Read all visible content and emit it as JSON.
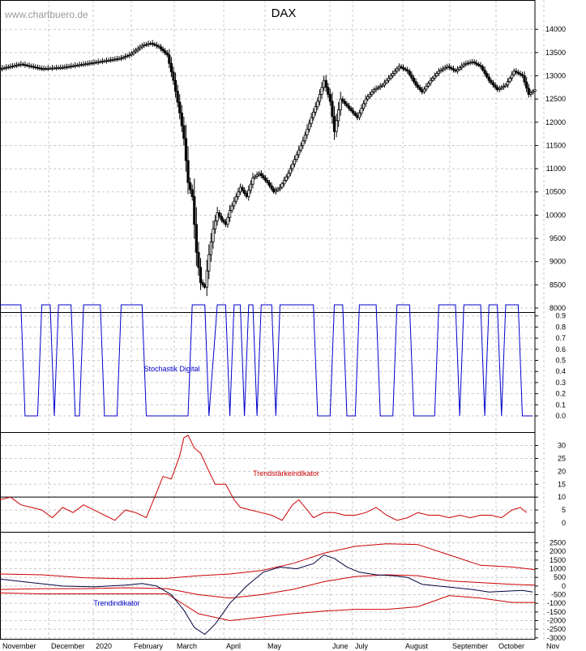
{
  "watermark": "www.chartbuero.de",
  "title": "DAX",
  "months": [
    "November",
    "December",
    "2020",
    "February",
    "March",
    "April",
    "May",
    "June",
    "July",
    "August",
    "September",
    "October",
    "Nov"
  ],
  "chart_data": [
    {
      "type": "candlestick",
      "title": "DAX",
      "ylim": [
        8000,
        14300
      ],
      "yticks": [
        8000,
        8500,
        9000,
        9500,
        10000,
        10500,
        11000,
        11500,
        12000,
        12500,
        13000,
        13500,
        14000
      ],
      "x_unit": "trading day index (0 = start of November 2019)",
      "close_series": [
        [
          0,
          13150
        ],
        [
          10,
          13250
        ],
        [
          20,
          13150
        ],
        [
          30,
          13180
        ],
        [
          40,
          13250
        ],
        [
          50,
          13320
        ],
        [
          58,
          13380
        ],
        [
          62,
          13450
        ],
        [
          68,
          13650
        ],
        [
          72,
          13700
        ],
        [
          76,
          13620
        ],
        [
          80,
          13450
        ],
        [
          83,
          12900
        ],
        [
          86,
          12200
        ],
        [
          88,
          11650
        ],
        [
          90,
          10700
        ],
        [
          92,
          10400
        ],
        [
          94,
          9200
        ],
        [
          96,
          8550
        ],
        [
          98,
          8450
        ],
        [
          100,
          9150
        ],
        [
          102,
          9700
        ],
        [
          104,
          10050
        ],
        [
          106,
          9900
        ],
        [
          108,
          9800
        ],
        [
          110,
          10100
        ],
        [
          112,
          10300
        ],
        [
          115,
          10600
        ],
        [
          118,
          10400
        ],
        [
          121,
          10800
        ],
        [
          124,
          10900
        ],
        [
          128,
          10700
        ],
        [
          131,
          10500
        ],
        [
          134,
          10600
        ],
        [
          138,
          10900
        ],
        [
          141,
          11200
        ],
        [
          145,
          11600
        ],
        [
          149,
          12100
        ],
        [
          152,
          12450
        ],
        [
          155,
          12900
        ],
        [
          158,
          12450
        ],
        [
          160,
          11800
        ],
        [
          163,
          12500
        ],
        [
          167,
          12300
        ],
        [
          171,
          12100
        ],
        [
          175,
          12500
        ],
        [
          179,
          12700
        ],
        [
          183,
          12800
        ],
        [
          187,
          13000
        ],
        [
          191,
          13200
        ],
        [
          195,
          13100
        ],
        [
          199,
          12800
        ],
        [
          202,
          12650
        ],
        [
          206,
          12900
        ],
        [
          210,
          13100
        ],
        [
          214,
          13200
        ],
        [
          218,
          13100
        ],
        [
          222,
          13250
        ],
        [
          226,
          13300
        ],
        [
          230,
          13200
        ],
        [
          234,
          12900
        ],
        [
          238,
          12700
        ],
        [
          242,
          12800
        ],
        [
          246,
          13100
        ],
        [
          250,
          13000
        ],
        [
          253,
          12600
        ],
        [
          256,
          12700
        ]
      ]
    },
    {
      "type": "line",
      "title": "Stochastik Digital",
      "ylim": [
        0,
        1
      ],
      "yticks": [
        0.0,
        0.1,
        0.2,
        0.3,
        0.4,
        0.5,
        0.6,
        0.7,
        0.8,
        0.9
      ],
      "series": [
        {
          "name": "Stochastik Digital",
          "color": "#0000cc",
          "points": [
            [
              0,
              1
            ],
            [
              10,
              1
            ],
            [
              12,
              0
            ],
            [
              18,
              0
            ],
            [
              20,
              1
            ],
            [
              24,
              1
            ],
            [
              26,
              0
            ],
            [
              28,
              1
            ],
            [
              34,
              1
            ],
            [
              36,
              0
            ],
            [
              38,
              0
            ],
            [
              40,
              1
            ],
            [
              48,
              1
            ],
            [
              50,
              0
            ],
            [
              56,
              0
            ],
            [
              58,
              1
            ],
            [
              68,
              1
            ],
            [
              70,
              0
            ],
            [
              90,
              0
            ],
            [
              92,
              1
            ],
            [
              98,
              1
            ],
            [
              100,
              0
            ],
            [
              104,
              1
            ],
            [
              108,
              1
            ],
            [
              110,
              0
            ],
            [
              112,
              1
            ],
            [
              115,
              1
            ],
            [
              117,
              0
            ],
            [
              119,
              1
            ],
            [
              121,
              1
            ],
            [
              123,
              0
            ],
            [
              125,
              1
            ],
            [
              130,
              1
            ],
            [
              132,
              0
            ],
            [
              134,
              1
            ],
            [
              150,
              1
            ],
            [
              152,
              0
            ],
            [
              158,
              0
            ],
            [
              160,
              1
            ],
            [
              164,
              1
            ],
            [
              166,
              0
            ],
            [
              170,
              0
            ],
            [
              172,
              1
            ],
            [
              180,
              1
            ],
            [
              182,
              0
            ],
            [
              188,
              0
            ],
            [
              190,
              1
            ],
            [
              196,
              1
            ],
            [
              198,
              0
            ],
            [
              208,
              0
            ],
            [
              210,
              1
            ],
            [
              218,
              1
            ],
            [
              220,
              0
            ],
            [
              222,
              1
            ],
            [
              230,
              1
            ],
            [
              232,
              0
            ],
            [
              234,
              1
            ],
            [
              238,
              1
            ],
            [
              240,
              0
            ],
            [
              242,
              1
            ],
            [
              248,
              1
            ],
            [
              250,
              0
            ],
            [
              255,
              0
            ]
          ]
        }
      ]
    },
    {
      "type": "line",
      "title": "Trendstärkeindikator",
      "ylim": [
        0,
        33
      ],
      "yticks": [
        0,
        5,
        10,
        15,
        20,
        25,
        30
      ],
      "reference_line": 10,
      "series": [
        {
          "name": "Trendstärkeindikator",
          "color": "#cc0000",
          "points": [
            [
              0,
              9
            ],
            [
              5,
              10
            ],
            [
              10,
              7
            ],
            [
              15,
              6
            ],
            [
              20,
              5
            ],
            [
              25,
              2
            ],
            [
              30,
              6
            ],
            [
              35,
              4
            ],
            [
              40,
              7
            ],
            [
              45,
              5
            ],
            [
              50,
              3
            ],
            [
              55,
              1
            ],
            [
              60,
              5
            ],
            [
              65,
              4
            ],
            [
              70,
              2
            ],
            [
              75,
              12
            ],
            [
              78,
              18
            ],
            [
              82,
              17
            ],
            [
              86,
              26
            ],
            [
              88,
              33
            ],
            [
              90,
              34
            ],
            [
              93,
              29
            ],
            [
              96,
              27
            ],
            [
              100,
              20
            ],
            [
              103,
              15
            ],
            [
              108,
              15
            ],
            [
              112,
              9
            ],
            [
              115,
              6
            ],
            [
              120,
              5
            ],
            [
              125,
              4
            ],
            [
              130,
              3
            ],
            [
              135,
              1
            ],
            [
              140,
              7
            ],
            [
              143,
              9
            ],
            [
              147,
              5
            ],
            [
              150,
              2
            ],
            [
              155,
              4
            ],
            [
              160,
              4
            ],
            [
              165,
              3
            ],
            [
              170,
              3
            ],
            [
              175,
              4
            ],
            [
              180,
              6
            ],
            [
              185,
              3
            ],
            [
              190,
              1
            ],
            [
              195,
              2
            ],
            [
              200,
              4
            ],
            [
              205,
              3
            ],
            [
              210,
              3
            ],
            [
              215,
              2
            ],
            [
              220,
              3
            ],
            [
              225,
              2
            ],
            [
              230,
              3
            ],
            [
              235,
              3
            ],
            [
              240,
              2
            ],
            [
              245,
              5
            ],
            [
              249,
              6
            ],
            [
              252,
              4
            ]
          ]
        }
      ]
    },
    {
      "type": "line",
      "title": "Trendindikator",
      "ylim": [
        -3150,
        2950
      ],
      "yticks": [
        -3000,
        -2500,
        -2000,
        -1500,
        -1000,
        -500,
        0,
        500,
        1000,
        1500,
        2000,
        2500
      ],
      "series": [
        {
          "name": "upper band",
          "color": "#cc0000",
          "points": [
            [
              0,
              700
            ],
            [
              20,
              650
            ],
            [
              40,
              480
            ],
            [
              60,
              420
            ],
            [
              80,
              450
            ],
            [
              95,
              600
            ],
            [
              110,
              700
            ],
            [
              125,
              900
            ],
            [
              140,
              1300
            ],
            [
              155,
              1900
            ],
            [
              170,
              2300
            ],
            [
              185,
              2450
            ],
            [
              200,
              2400
            ],
            [
              215,
              1800
            ],
            [
              230,
              1200
            ],
            [
              245,
              1100
            ],
            [
              256,
              950
            ]
          ]
        },
        {
          "name": "middle line",
          "color": "#cc0000",
          "points": [
            [
              0,
              -200
            ],
            [
              20,
              -150
            ],
            [
              40,
              -150
            ],
            [
              60,
              -100
            ],
            [
              80,
              -150
            ],
            [
              95,
              -500
            ],
            [
              110,
              -700
            ],
            [
              125,
              -500
            ],
            [
              140,
              -200
            ],
            [
              155,
              250
            ],
            [
              170,
              550
            ],
            [
              185,
              650
            ],
            [
              200,
              600
            ],
            [
              215,
              300
            ],
            [
              230,
              200
            ],
            [
              245,
              100
            ],
            [
              256,
              50
            ]
          ]
        },
        {
          "name": "lower band",
          "color": "#cc0000",
          "points": [
            [
              0,
              -400
            ],
            [
              20,
              -450
            ],
            [
              40,
              -450
            ],
            [
              60,
              -450
            ],
            [
              80,
              -450
            ],
            [
              95,
              -1600
            ],
            [
              110,
              -2000
            ],
            [
              125,
              -1800
            ],
            [
              140,
              -1600
            ],
            [
              155,
              -1450
            ],
            [
              170,
              -1350
            ],
            [
              185,
              -1350
            ],
            [
              200,
              -1200
            ],
            [
              215,
              -550
            ],
            [
              230,
              -700
            ],
            [
              245,
              -950
            ],
            [
              256,
              -950
            ]
          ]
        },
        {
          "name": "indicator",
          "color": "#000040",
          "points": [
            [
              0,
              400
            ],
            [
              15,
              200
            ],
            [
              30,
              0
            ],
            [
              45,
              -50
            ],
            [
              60,
              50
            ],
            [
              68,
              150
            ],
            [
              75,
              0
            ],
            [
              82,
              -500
            ],
            [
              88,
              -1400
            ],
            [
              93,
              -2400
            ],
            [
              98,
              -2800
            ],
            [
              103,
              -2200
            ],
            [
              110,
              -1000
            ],
            [
              118,
              0
            ],
            [
              126,
              800
            ],
            [
              134,
              1100
            ],
            [
              142,
              1000
            ],
            [
              150,
              1300
            ],
            [
              155,
              1800
            ],
            [
              160,
              1600
            ],
            [
              166,
              1100
            ],
            [
              172,
              800
            ],
            [
              180,
              650
            ],
            [
              188,
              600
            ],
            [
              195,
              500
            ],
            [
              202,
              100
            ],
            [
              210,
              0
            ],
            [
              218,
              -100
            ],
            [
              226,
              -200
            ],
            [
              234,
              -350
            ],
            [
              242,
              -300
            ],
            [
              250,
              -250
            ],
            [
              255,
              -350
            ]
          ]
        }
      ]
    }
  ]
}
